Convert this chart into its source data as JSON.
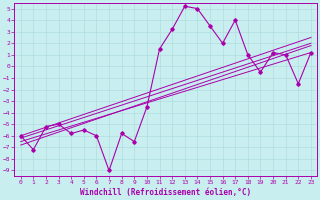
{
  "xlabel": "Windchill (Refroidissement éolien,°C)",
  "background_color": "#c8eef0",
  "grid_color": "#b0dde0",
  "line_color": "#aa00aa",
  "xlim": [
    -0.5,
    23.5
  ],
  "ylim": [
    -9.5,
    5.5
  ],
  "xticks": [
    0,
    1,
    2,
    3,
    4,
    5,
    6,
    7,
    8,
    9,
    10,
    11,
    12,
    13,
    14,
    15,
    16,
    17,
    18,
    19,
    20,
    21,
    22,
    23
  ],
  "yticks": [
    5,
    4,
    3,
    2,
    1,
    0,
    -1,
    -2,
    -3,
    -4,
    -5,
    -6,
    -7,
    -8,
    -9
  ],
  "main_x": [
    0,
    1,
    2,
    3,
    4,
    5,
    6,
    7,
    8,
    9,
    10,
    11,
    12,
    13,
    14,
    15,
    16,
    17,
    18,
    19,
    20,
    21,
    22,
    23
  ],
  "main_y": [
    -6.0,
    -7.2,
    -5.2,
    -5.0,
    -5.8,
    -5.5,
    -6.0,
    -9.0,
    -5.8,
    -6.5,
    -3.5,
    1.5,
    3.2,
    5.2,
    5.0,
    3.5,
    2.0,
    4.0,
    1.0,
    -0.5,
    1.2,
    1.0,
    -1.5,
    1.2
  ],
  "trend_lines": [
    {
      "x0": 0,
      "y0": -6.8,
      "x1": 23,
      "y1": 1.8
    },
    {
      "x0": 0,
      "y0": -6.5,
      "x1": 23,
      "y1": 1.2
    },
    {
      "x0": 0,
      "y0": -6.2,
      "x1": 23,
      "y1": 2.0
    },
    {
      "x0": 0,
      "y0": -6.0,
      "x1": 23,
      "y1": 2.5
    }
  ],
  "tick_fontsize": 4.5,
  "xlabel_fontsize": 5.5
}
